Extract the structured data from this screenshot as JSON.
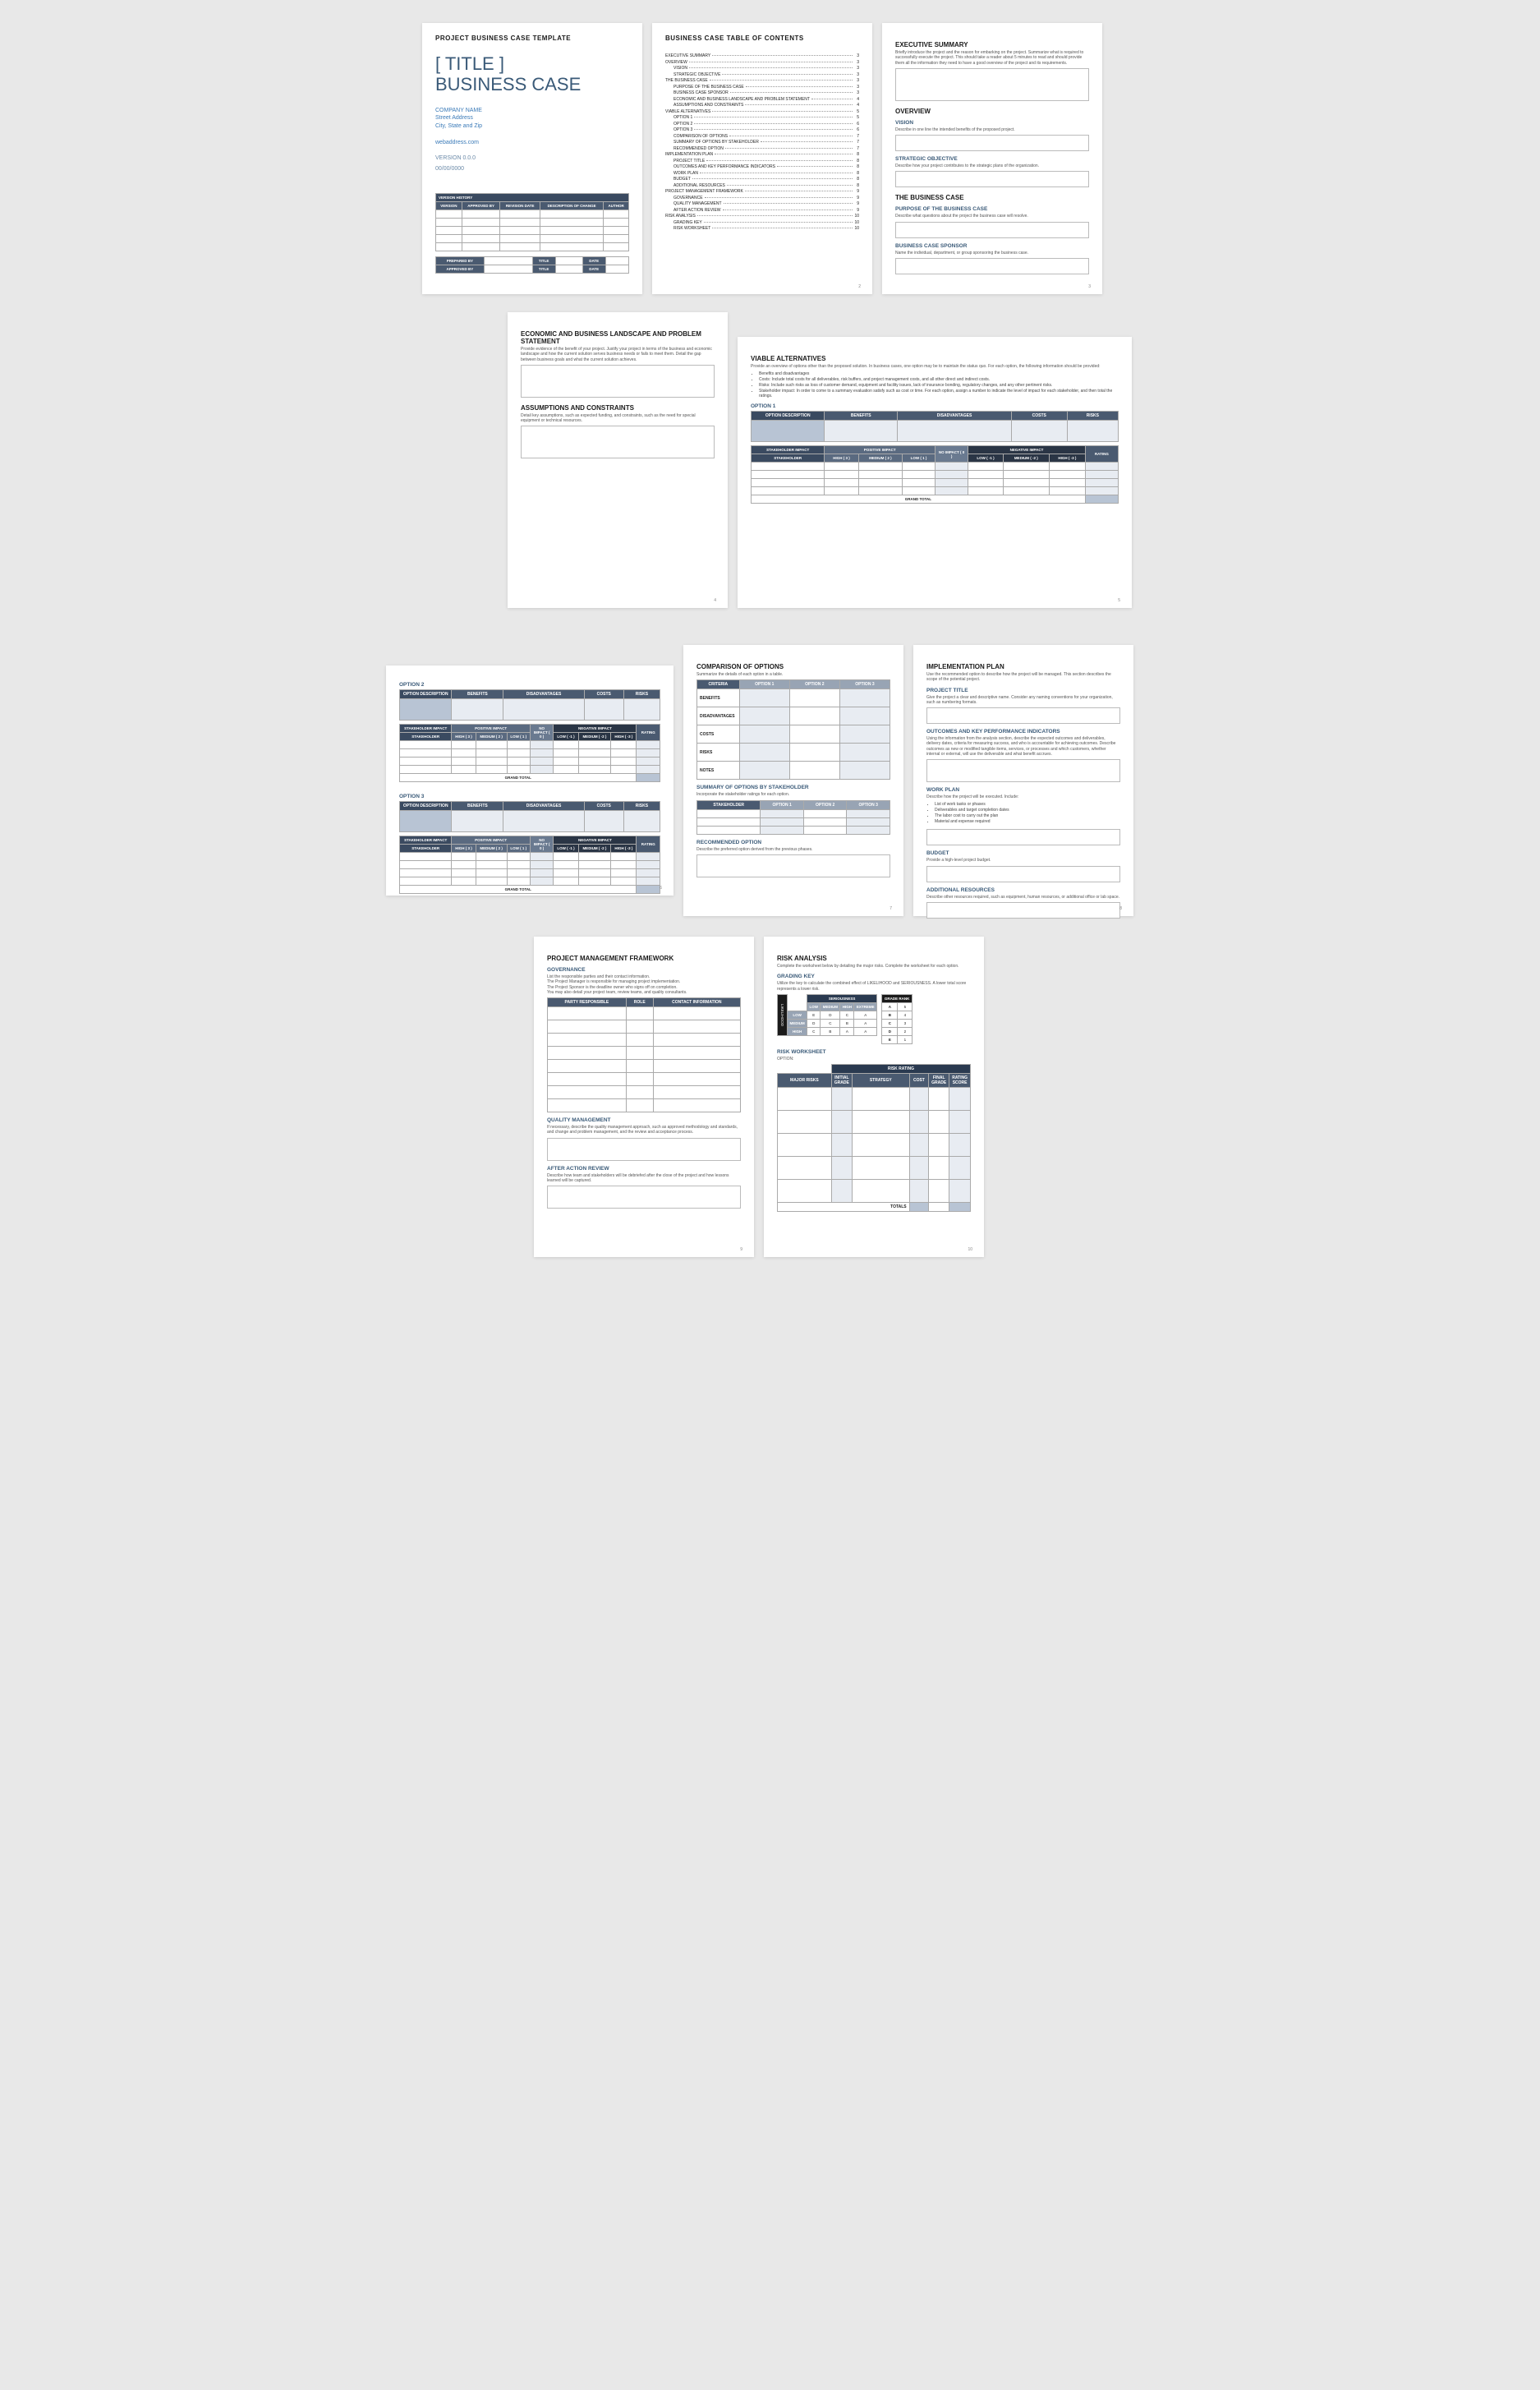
{
  "page1": {
    "overline": "PROJECT BUSINESS CASE TEMPLATE",
    "title1": "[ TITLE ]",
    "title2": "BUSINESS CASE",
    "company": "COMPANY NAME",
    "street": "Street Address",
    "citystate": "City, State and Zip",
    "web": "webaddress.com",
    "version": "VERSION 0.0.0",
    "date": "00/00/0000",
    "vh_title": "VERSION HISTORY",
    "vh_cols": [
      "VERSION",
      "APPROVED BY",
      "REVISION DATE",
      "DESCRIPTION OF CHANGE",
      "AUTHOR"
    ],
    "sign": [
      "PREPARED BY",
      "APPROVED BY"
    ],
    "sign_cols": [
      "TITLE",
      "DATE"
    ]
  },
  "page2": {
    "title": "BUSINESS CASE TABLE OF CONTENTS",
    "items": [
      {
        "t": "EXECUTIVE SUMMARY",
        "n": "3",
        "i": 0
      },
      {
        "t": "OVERVIEW",
        "n": "3",
        "i": 0
      },
      {
        "t": "VISION",
        "n": "3",
        "i": 1
      },
      {
        "t": "STRATEGIC OBJECTIVE",
        "n": "3",
        "i": 1
      },
      {
        "t": "THE BUSINESS CASE",
        "n": "3",
        "i": 0
      },
      {
        "t": "PURPOSE OF THE BUSINESS CASE",
        "n": "3",
        "i": 1
      },
      {
        "t": "BUSINESS CASE SPONSOR",
        "n": "3",
        "i": 1
      },
      {
        "t": "ECONOMIC AND BUSINESS LANDSCAPE AND PROBLEM STATEMENT",
        "n": "4",
        "i": 1
      },
      {
        "t": "ASSUMPTIONS AND CONSTRAINTS",
        "n": "4",
        "i": 1
      },
      {
        "t": "VIABLE ALTERNATIVES",
        "n": "5",
        "i": 0
      },
      {
        "t": "OPTION 1",
        "n": "5",
        "i": 1
      },
      {
        "t": "OPTION 2",
        "n": "6",
        "i": 1
      },
      {
        "t": "OPTION 3",
        "n": "6",
        "i": 1
      },
      {
        "t": "COMPARISON OF OPTIONS",
        "n": "7",
        "i": 1
      },
      {
        "t": "SUMMARY OF OPTIONS BY STAKEHOLDER",
        "n": "7",
        "i": 1
      },
      {
        "t": "RECOMMENDED OPTION",
        "n": "7",
        "i": 1
      },
      {
        "t": "IMPLEMENTATION PLAN",
        "n": "8",
        "i": 0
      },
      {
        "t": "PROJECT TITLE",
        "n": "8",
        "i": 1
      },
      {
        "t": "OUTCOMES AND KEY PERFORMANCE INDICATORS",
        "n": "8",
        "i": 1
      },
      {
        "t": "WORK PLAN",
        "n": "8",
        "i": 1
      },
      {
        "t": "BUDGET",
        "n": "8",
        "i": 1
      },
      {
        "t": "ADDITIONAL RESOURCES",
        "n": "8",
        "i": 1
      },
      {
        "t": "PROJECT MANAGEMENT FRAMEWORK",
        "n": "9",
        "i": 0
      },
      {
        "t": "GOVERNANCE",
        "n": "9",
        "i": 1
      },
      {
        "t": "QUALITY MANAGEMENT",
        "n": "9",
        "i": 1
      },
      {
        "t": "AFTER ACTION REVIEW",
        "n": "9",
        "i": 1
      },
      {
        "t": "RISK ANALYSIS",
        "n": "10",
        "i": 0
      },
      {
        "t": "GRADING KEY",
        "n": "10",
        "i": 1
      },
      {
        "t": "RISK WORKSHEET",
        "n": "10",
        "i": 1
      }
    ]
  },
  "page3": {
    "exec_t": "EXECUTIVE SUMMARY",
    "exec_d": "Briefly introduce the project and the reason for embarking on the project. Summarize what is required to successfully execute the project. This should take a reader about 5 minutes to read and should provide them all the information they need to have a good overview of the project and its requirements.",
    "ov_t": "OVERVIEW",
    "vision_t": "VISION",
    "vision_d": "Describe in one line the intended benefits of the proposed project.",
    "so_t": "STRATEGIC OBJECTIVE",
    "so_d": "Describe how your project contributes to the strategic plans of the organization.",
    "bc_t": "THE BUSINESS CASE",
    "purpose_t": "PURPOSE OF THE BUSINESS CASE",
    "purpose_d": "Describe what questions about the project the business case will resolve.",
    "sponsor_t": "BUSINESS CASE SPONSOR",
    "sponsor_d": "Name the individual, department, or group sponsoring the business case."
  },
  "page4": {
    "econ_t": "ECONOMIC AND BUSINESS LANDSCAPE AND PROBLEM STATEMENT",
    "econ_d": "Provide evidence of the benefit of your project. Justify your project in terms of the business and economic landscape and how the current solution serves business needs or fails to meet them. Detail the gap between business goals and what the current solution achieves.",
    "assump_t": "ASSUMPTIONS AND CONSTRAINTS",
    "assump_d": "Detail key assumptions, such as expected funding, and constraints, such as the need for special equipment or technical resources."
  },
  "page5": {
    "title": "VIABLE ALTERNATIVES",
    "desc": "Provide an overview of options other than the proposed solution. In business cases, one option may be to maintain the status quo. For each option, the following information should be provided:",
    "bullets": [
      "Benefits and disadvantages",
      "Costs: Include total costs for all deliverables, risk buffers, and project management costs, and all other direct and indirect costs.",
      "Risks: Include such risks as loss of customer demand, equipment and facility issues, lack of insurance bonding, regulatory changes, and any other pertinent risks.",
      "Stakeholder impact: In order to come to a summary evaluation satisfy such as cost or time. For each option, assign a number to indicate the level of impact for each stakeholder, and then total the ratings."
    ],
    "opt_label": "OPTION 1",
    "row1": [
      "OPTION DESCRIPTION",
      "BENEFITS",
      "DISADVANTAGES",
      "COSTS",
      "RISKS"
    ],
    "stake_t": "STAKEHOLDER IMPACT",
    "pos_t": "POSITIVE IMPACT",
    "neg_t": "NEGATIVE IMPACT",
    "stake_cols": [
      "STAKEHOLDER",
      "HIGH ( 3 )",
      "MEDIUM ( 2 )",
      "LOW ( 1 )",
      "NO IMPACT ( 0 )",
      "LOW ( -1 )",
      "MEDIUM ( -2 )",
      "HIGH ( -3 )",
      "RATING"
    ],
    "grand": "GRAND TOTAL"
  },
  "page6": {
    "opt2": "OPTION 2",
    "opt3": "OPTION 3"
  },
  "page7": {
    "comp_t": "COMPARISON OF OPTIONS",
    "comp_d": "Summarize the details of each option in a table.",
    "comp_cols": [
      "CRITERIA",
      "OPTION 1",
      "OPTION 2",
      "OPTION 3"
    ],
    "comp_rows": [
      "BENEFITS",
      "DISADVANTAGES",
      "COSTS",
      "RISKS",
      "NOTES"
    ],
    "sum_t": "SUMMARY OF OPTIONS BY STAKEHOLDER",
    "sum_d": "Incorporate the stakeholder ratings for each option.",
    "sum_cols": [
      "STAKEHOLDER",
      "OPTION 1",
      "OPTION 2",
      "OPTION 3"
    ],
    "rec_t": "RECOMMENDED OPTION",
    "rec_d": "Describe the preferred option derived from the previous phases."
  },
  "page8": {
    "title": "IMPLEMENTATION PLAN",
    "desc": "Use the recommended option to describe how the project will be managed. This section describes the scope of the potential project.",
    "pt_t": "PROJECT TITLE",
    "pt_d": "Give the project a clear and descriptive name. Consider any naming conventions for your organization, such as numbering formats.",
    "kpi_t": "OUTCOMES AND KEY PERFORMANCE INDICATORS",
    "kpi_d": "Using the information from the analysis section, describe the expected outcomes and deliverables, delivery dates, criteria for measuring success, and who is accountable for achieving outcomes. Describe outcomes as new or modified tangible items, services, or processes and which customers, whether internal or external, will use the deliverable and what benefit accrues.",
    "wp_t": "WORK PLAN",
    "wp_d": "Describe how the project will be executed. Include:",
    "wp_bullets": [
      "List of work tasks or phases",
      "Deliverables and target completion dates",
      "The labor cost to carry out the plan",
      "Material and expense required"
    ],
    "bud_t": "BUDGET",
    "bud_d": "Provide a high-level project budget.",
    "ar_t": "ADDITIONAL RESOURCES",
    "ar_d": "Describe other resources required, such as equipment, human resources, or additional office or lab space."
  },
  "page9": {
    "title": "PROJECT MANAGEMENT FRAMEWORK",
    "gov_t": "GOVERNANCE",
    "gov_d": "List the responsible parties and their contact information.\nThe Project Manager is responsible for managing project implementation.\nThe Project Sponsor is the deadline owner who signs off on completion.\nYou may also detail your project team, review teams, and quality consultants.",
    "gov_cols": [
      "PARTY RESPONSIBLE",
      "ROLE",
      "CONTACT INFORMATION"
    ],
    "qm_t": "QUALITY MANAGEMENT",
    "qm_d": "If necessary, describe the quality management approach, such as approved methodology and standards, and change and problem management, and the review and acceptance process.",
    "aar_t": "AFTER ACTION REVIEW",
    "aar_d": "Describe how team and stakeholders will be debriefed after the close of the project and how lessons learned will be captured."
  },
  "page10": {
    "title": "RISK ANALYSIS",
    "desc": "Complete the worksheet below by detailing the major risks. Complete the worksheet for each option.",
    "gk_t": "GRADING KEY",
    "gk_d": "Utilize the key to calculate the combined effect of LIKELIHOOD and SERIOUSNESS. A lower total score represents a lower risk.",
    "ser": "SERIOUSNESS",
    "lik": "LIKELIHOOD",
    "ser_cols": [
      "LOW",
      "MEDIUM",
      "HIGH",
      "EXTREME"
    ],
    "rank_t": "GRADE RANK",
    "grid": [
      [
        "LOW",
        "E",
        "D",
        "C",
        "A",
        "",
        "A",
        "5"
      ],
      [
        "MEDIUM",
        "D",
        "C",
        "B",
        "A",
        "",
        "B",
        "4"
      ],
      [
        "HIGH",
        "C",
        "B",
        "A",
        "A",
        "",
        "C",
        "3"
      ],
      [
        "",
        "",
        "",
        "",
        "",
        "",
        "D",
        "2"
      ],
      [
        "",
        "",
        "",
        "",
        "",
        "",
        "E",
        "1"
      ]
    ],
    "rw_t": "RISK WORKSHEET",
    "rw_opt": "OPTION:",
    "rw_hdr1": "RISK RATING",
    "rw_cols": [
      "MAJOR RISKS",
      "INITIAL GRADE",
      "STRATEGY",
      "COST",
      "FINAL GRADE",
      "RATING SCORE"
    ],
    "totals": "TOTALS"
  },
  "colors": {
    "header_navy": "#4a5a70",
    "header_dark": "#2a3a50",
    "shade_blue": "#b8c4d4",
    "shade_light": "#e8ecf2",
    "accent_blue": "#3a5a78"
  }
}
